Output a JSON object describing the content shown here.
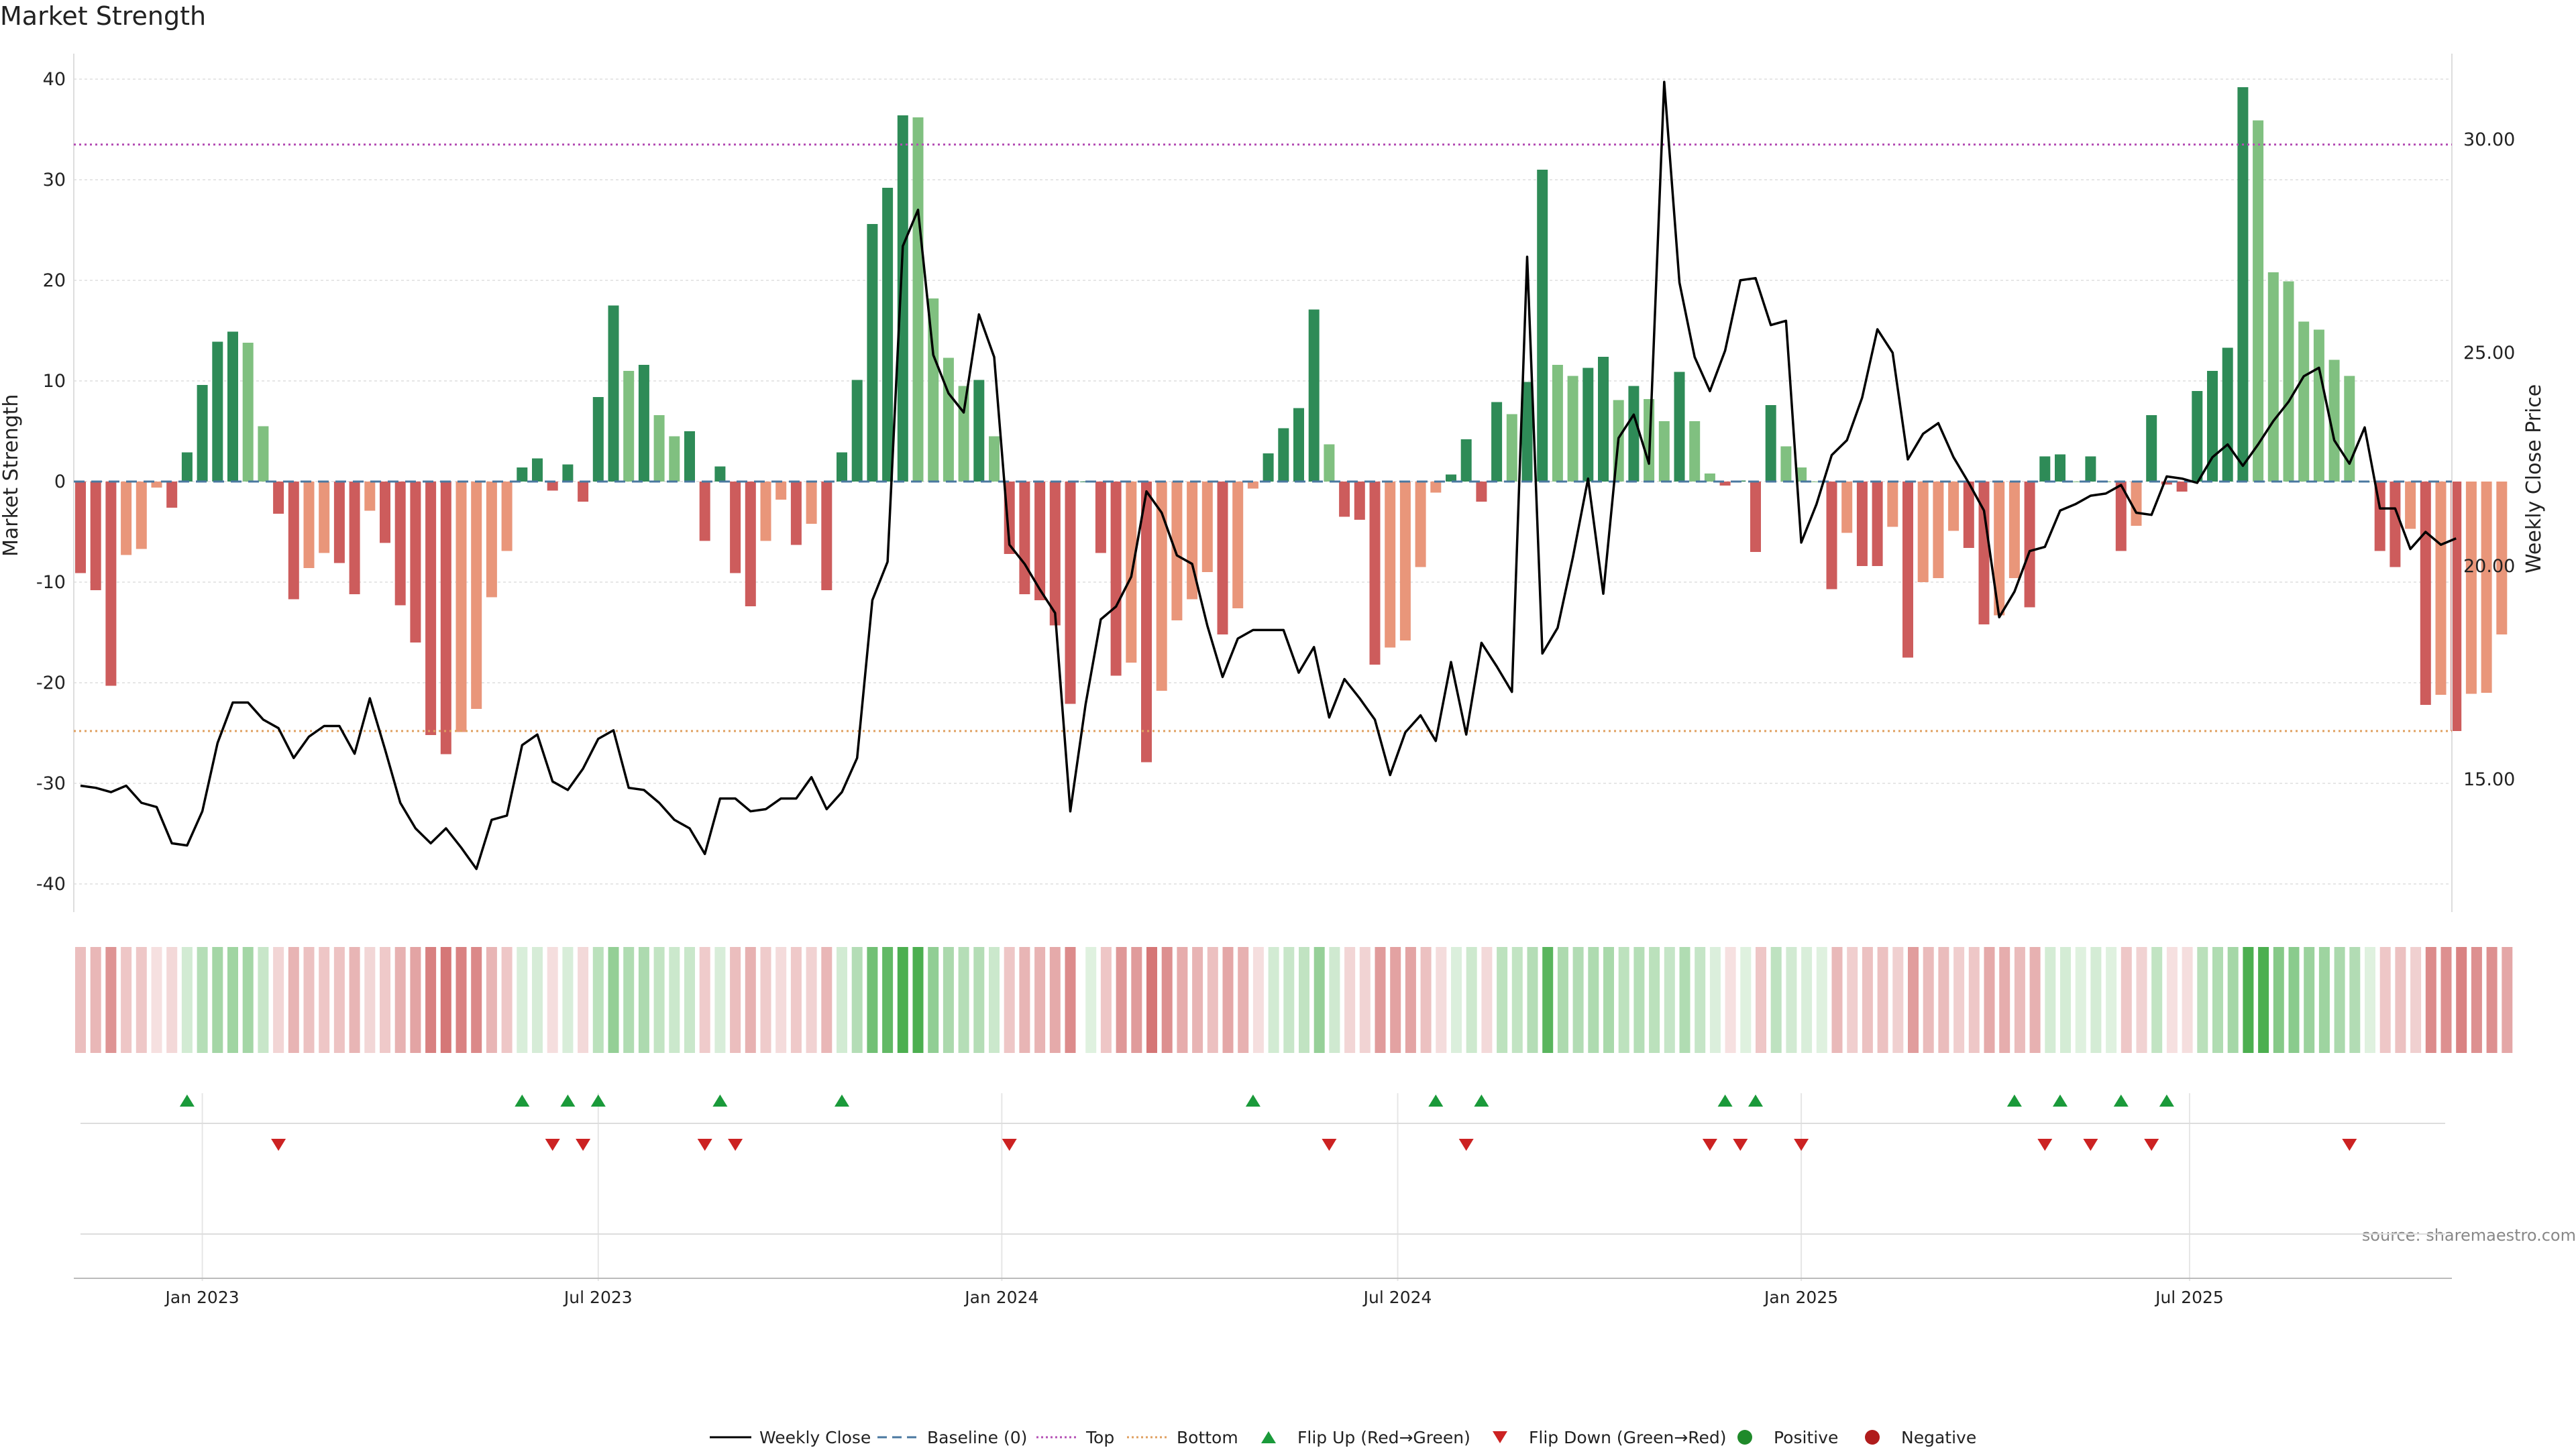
{
  "title": "Market Strength",
  "source": "source: sharemaestro.com",
  "legend": {
    "weekly_close": "Weekly Close",
    "baseline": "Baseline (0)",
    "top": "Top",
    "bottom": "Bottom",
    "flip_up": "Flip Up (Red→Green)",
    "flip_down": "Flip Down (Green→Red)",
    "positive": "Positive",
    "negative": "Negative"
  },
  "colors": {
    "strong_green": "#2e8b57",
    "light_green": "#80c080",
    "strong_red": "#cd5c5c",
    "light_red": "#e9967a",
    "line": "#000000",
    "top_line": "#b550b5",
    "bottom_line": "#e0a060",
    "baseline": "#4a78a0",
    "flip_up": "#1a9a3a",
    "flip_down": "#cc2222"
  },
  "chart_data": {
    "type": "bar+line",
    "title": "Market Strength",
    "ylabel": "Market Strength",
    "y2label": "Weekly Close Price",
    "ylim": [
      -42,
      40
    ],
    "y_ticks": [
      -40,
      -30,
      -20,
      -10,
      0,
      10,
      20,
      30,
      40
    ],
    "y2lim": [
      11.75,
      31.45
    ],
    "y2_ticks": [
      "15.00",
      "20.00",
      "25.00",
      "30.00"
    ],
    "y2_tick_values": [
      15,
      20,
      25,
      30
    ],
    "top_level": 33.5,
    "bottom_level": -24.8,
    "x_ticks": [
      "Jan 2023",
      "Jul 2023",
      "Jan 2024",
      "Jul 2024",
      "Jan 2025",
      "Jul 2025"
    ],
    "x_tick_weeks": [
      8,
      34,
      60.5,
      86.5,
      113,
      138.5
    ],
    "strength": [
      -9.1,
      -10.8,
      -20.3,
      -7.3,
      -6.7,
      -0.6,
      -2.6,
      2.9,
      9.6,
      13.9,
      14.9,
      13.8,
      5.5,
      -3.2,
      -11.7,
      -8.6,
      -7.1,
      -8.1,
      -11.2,
      -2.9,
      -6.1,
      -12.3,
      -16.0,
      -25.2,
      -27.1,
      -24.9,
      -22.6,
      -11.5,
      -6.9,
      1.4,
      2.3,
      -0.9,
      1.7,
      -2.0,
      8.4,
      17.5,
      11.0,
      11.6,
      6.6,
      4.5,
      5.0,
      -5.9,
      1.5,
      -9.1,
      -12.4,
      -5.9,
      -1.8,
      -6.3,
      -4.2,
      -10.8,
      2.9,
      10.1,
      25.6,
      29.2,
      36.4,
      36.2,
      18.2,
      12.3,
      9.5,
      10.1,
      4.5,
      -7.2,
      -11.2,
      -11.8,
      -14.3,
      -22.1,
      0.0,
      -7.1,
      -19.3,
      -18.0,
      -27.9,
      -20.8,
      -13.8,
      -11.7,
      -9.0,
      -15.2,
      -12.6,
      -0.7,
      2.8,
      5.3,
      7.3,
      17.1,
      3.7,
      -3.5,
      -3.8,
      -18.2,
      -16.5,
      -15.8,
      -8.5,
      -1.1,
      0.7,
      4.2,
      -2.0,
      7.9,
      6.7,
      9.9,
      31.0,
      11.6,
      10.5,
      11.3,
      12.4,
      8.1,
      9.5,
      8.2,
      6.0,
      10.9,
      6.0,
      0.8,
      -0.4,
      0.1,
      -7.0,
      7.6,
      3.5,
      1.4,
      0.0,
      -10.7,
      -5.1,
      -8.4,
      -8.4,
      -4.5,
      -17.5,
      -10.0,
      -9.6,
      -4.9,
      -6.6,
      -14.2,
      -13.3,
      -9.6,
      -12.5,
      2.5,
      2.7,
      0.0,
      2.5,
      0.0,
      -6.9,
      -4.4,
      6.6,
      -0.3,
      -1.0,
      9.0,
      11.0,
      13.3,
      39.2,
      35.9,
      20.8,
      19.9,
      15.9,
      15.1,
      12.1,
      10.5,
      0.0,
      -6.9,
      -8.5,
      -4.7,
      -22.2,
      -21.2,
      -24.8,
      -21.1,
      -21.0,
      -15.2
    ],
    "close": [
      14.85,
      14.8,
      14.7,
      14.85,
      14.45,
      14.35,
      13.5,
      13.45,
      14.25,
      15.85,
      16.8,
      16.8,
      16.4,
      16.2,
      15.5,
      16.0,
      16.25,
      16.25,
      15.6,
      16.9,
      15.7,
      14.45,
      13.85,
      13.5,
      13.85,
      13.4,
      12.9,
      14.05,
      14.15,
      15.8,
      16.05,
      14.95,
      14.75,
      15.25,
      15.95,
      16.15,
      14.8,
      14.75,
      14.45,
      14.05,
      13.85,
      13.25,
      14.55,
      14.55,
      14.25,
      14.3,
      14.55,
      14.55,
      15.05,
      14.3,
      14.7,
      15.5,
      19.2,
      20.1,
      27.5,
      28.35,
      24.95,
      24.05,
      23.6,
      25.9,
      24.9,
      20.5,
      20.05,
      19.45,
      18.9,
      14.25,
      16.75,
      18.75,
      19.05,
      19.75,
      21.75,
      21.25,
      20.25,
      20.05,
      18.6,
      17.4,
      18.3,
      18.5,
      18.5,
      18.5,
      17.5,
      18.1,
      16.45,
      17.35,
      16.9,
      16.4,
      15.1,
      16.1,
      16.5,
      15.9,
      17.75,
      16.05,
      18.2,
      17.65,
      17.05,
      27.25,
      17.95,
      18.55,
      20.2,
      22.05,
      19.35,
      23.0,
      23.55,
      22.4,
      31.35,
      26.65,
      24.9,
      24.1,
      25.05,
      26.7,
      26.75,
      25.65,
      25.75,
      20.55,
      21.45,
      22.6,
      22.95,
      23.95,
      25.55,
      25.0,
      22.5,
      23.1,
      23.35,
      22.55,
      21.95,
      21.3,
      18.8,
      19.4,
      20.35,
      20.45,
      21.3,
      21.45,
      21.65,
      21.7,
      21.9,
      21.25,
      21.2,
      22.1,
      22.05,
      21.95,
      22.55,
      22.85,
      22.35,
      22.85,
      23.4,
      23.85,
      24.45,
      24.65,
      22.95,
      22.4,
      23.25,
      21.35,
      21.35,
      20.4,
      20.8,
      20.5,
      20.65
    ]
  },
  "flip_up_weeks": [
    7,
    29,
    32,
    34,
    42,
    50,
    77,
    89,
    92,
    108,
    110,
    127,
    130,
    134,
    137
  ],
  "flip_down_weeks": [
    13,
    31,
    33,
    41,
    43,
    61,
    82,
    91,
    107,
    109,
    113,
    129,
    132,
    136,
    149
  ],
  "strip_gap_after_week": 65
}
